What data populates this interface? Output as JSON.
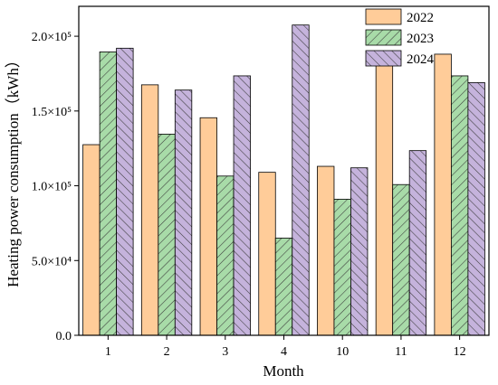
{
  "chart_data": {
    "type": "bar",
    "categories": [
      "1",
      "2",
      "3",
      "4",
      "10",
      "11",
      "12"
    ],
    "series": [
      {
        "name": "2022",
        "values": [
          127500,
          167500,
          145500,
          109000,
          113000,
          182500,
          188000
        ],
        "color": "#FFCC99",
        "pattern": "solid"
      },
      {
        "name": "2023",
        "values": [
          189500,
          134500,
          106500,
          65000,
          91000,
          100800,
          173500
        ],
        "color": "#A8DBA8",
        "pattern": "diagonal-hatch"
      },
      {
        "name": "2024",
        "values": [
          192000,
          164000,
          173500,
          207500,
          112000,
          123500,
          169000
        ],
        "color": "#C5B3DC",
        "pattern": "back-diagonal-hatch"
      }
    ],
    "xlabel": "Month",
    "ylabel": "Heating power consumption（kWh）",
    "ylim": [
      0,
      220000
    ],
    "yticks": [
      {
        "value": 0,
        "label": "0.0"
      },
      {
        "value": 50000,
        "label": "5.0×10⁴"
      },
      {
        "value": 100000,
        "label": "1.0×10⁵"
      },
      {
        "value": 150000,
        "label": "1.5×10⁵"
      },
      {
        "value": 200000,
        "label": "2.0×10⁵"
      }
    ],
    "grid": false,
    "legend_position": "top-right"
  }
}
